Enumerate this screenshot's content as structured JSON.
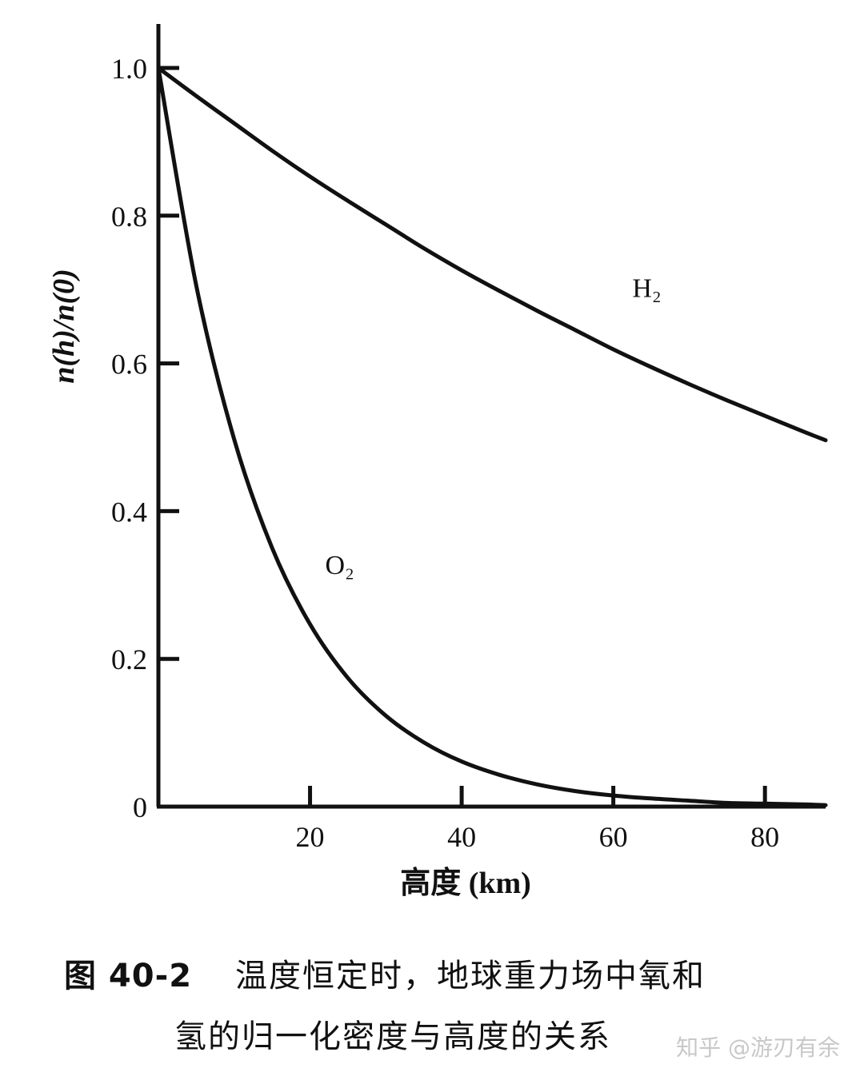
{
  "chart_data": {
    "type": "line",
    "xlabel": "高度 (km)",
    "ylabel": "n(h)/n(0)",
    "xlim": [
      0,
      88
    ],
    "ylim": [
      0,
      1.0
    ],
    "x_ticks": [
      20,
      40,
      60,
      80
    ],
    "y_ticks": [
      {
        "value": 0,
        "label": "0"
      },
      {
        "value": 0.2,
        "label": "0.2"
      },
      {
        "value": 0.4,
        "label": "0.4"
      },
      {
        "value": 0.6,
        "label": "0.6"
      },
      {
        "value": 0.8,
        "label": "0.8"
      },
      {
        "value": 1.0,
        "label": "1.0"
      }
    ],
    "grid": false,
    "series": [
      {
        "name": "H₂",
        "x": [
          0,
          5,
          10,
          15,
          20,
          25,
          30,
          35,
          40,
          45,
          50,
          55,
          60,
          65,
          70,
          75,
          80,
          85,
          88
        ],
        "values": [
          1.0,
          0.962,
          0.925,
          0.888,
          0.853,
          0.82,
          0.788,
          0.756,
          0.726,
          0.698,
          0.671,
          0.645,
          0.619,
          0.595,
          0.572,
          0.55,
          0.529,
          0.508,
          0.496
        ]
      },
      {
        "name": "O₂",
        "x": [
          0,
          5,
          10,
          15,
          20,
          25,
          30,
          35,
          40,
          45,
          50,
          55,
          60,
          65,
          70,
          75,
          80,
          85,
          88
        ],
        "values": [
          1.0,
          0.705,
          0.497,
          0.35,
          0.247,
          0.174,
          0.123,
          0.087,
          0.061,
          0.043,
          0.03,
          0.021,
          0.015,
          0.011,
          0.008,
          0.005,
          0.004,
          0.003,
          0.002
        ]
      }
    ]
  },
  "caption": {
    "figure_number": "图 40-2",
    "line1": "温度恒定时，地球重力场中氧和",
    "line2": "氢的归一化密度与高度的关系"
  },
  "watermark": "知乎 @游刃有余"
}
